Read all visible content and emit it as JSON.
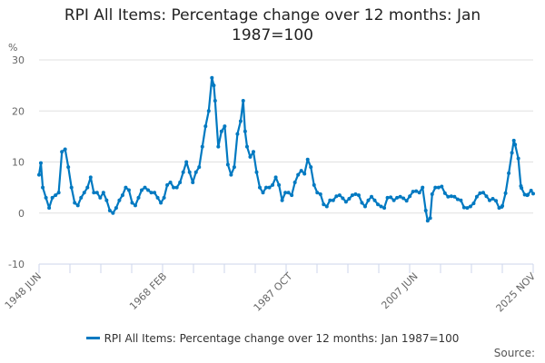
{
  "chart_data": {
    "type": "line",
    "title": "RPI All Items: Percentage change over 12 months: Jan 1987=100",
    "ylabel": "%",
    "xlabel": "",
    "ylim": [
      -10,
      30
    ],
    "yticks": [
      30,
      20,
      10,
      0,
      -10
    ],
    "xlim": [
      1948.42,
      2025.83
    ],
    "xtick_labels": [
      {
        "label": "1948 JUN",
        "x": 1948.42
      },
      {
        "label": "1968 FEB",
        "x": 1968.08
      },
      {
        "label": "1987 OCT",
        "x": 1987.75
      },
      {
        "label": "2007 JUN",
        "x": 2007.42
      },
      {
        "label": "2025 NOV",
        "x": 2025.83
      }
    ],
    "grid": true,
    "legend_position": "bottom",
    "series": [
      {
        "name": "RPI All Items: Percentage change over 12 months: Jan 1987=100",
        "color": "#0079c1",
        "x": [
          1948.42,
          1948.7,
          1949,
          1949.5,
          1950,
          1950.5,
          1951,
          1951.5,
          1952,
          1952.5,
          1953,
          1953.5,
          1954,
          1954.5,
          1955,
          1955.5,
          1956,
          1956.5,
          1957,
          1957.5,
          1958,
          1958.5,
          1959,
          1959.5,
          1960,
          1960.5,
          1961,
          1961.5,
          1962,
          1962.5,
          1963,
          1963.5,
          1964,
          1964.5,
          1965,
          1965.5,
          1966,
          1966.5,
          1967,
          1967.5,
          1968,
          1968.5,
          1969,
          1969.5,
          1970,
          1970.5,
          1971,
          1971.5,
          1972,
          1972.5,
          1973,
          1973.5,
          1974,
          1974.5,
          1975,
          1975.5,
          1975.8,
          1976,
          1976.5,
          1977,
          1977.5,
          1978,
          1978.5,
          1979,
          1979.5,
          1980,
          1980.4,
          1980.7,
          1981,
          1981.5,
          1982,
          1982.5,
          1983,
          1983.5,
          1984,
          1984.5,
          1985,
          1985.5,
          1986,
          1986.5,
          1987,
          1987.5,
          1988,
          1988.5,
          1989,
          1989.5,
          1990,
          1990.5,
          1991,
          1991.5,
          1992,
          1992.5,
          1993,
          1993.5,
          1994,
          1994.5,
          1995,
          1995.5,
          1996,
          1996.5,
          1997,
          1997.5,
          1998,
          1998.5,
          1999,
          1999.5,
          2000,
          2000.5,
          2001,
          2001.5,
          2002,
          2002.5,
          2003,
          2003.5,
          2004,
          2004.5,
          2005,
          2005.5,
          2006,
          2006.5,
          2007,
          2007.5,
          2008,
          2008.5,
          2009,
          2009.3,
          2009.7,
          2010,
          2010.5,
          2011,
          2011.5,
          2012,
          2012.5,
          2013,
          2013.5,
          2014,
          2014.5,
          2015,
          2015.5,
          2016,
          2016.5,
          2017,
          2017.5,
          2018,
          2018.5,
          2019,
          2019.5,
          2020,
          2020.5,
          2020.9,
          2021,
          2021.5,
          2022,
          2022.5,
          2022.8,
          2023,
          2023.5,
          2023.9,
          2024,
          2024.5,
          2024.9,
          2025,
          2025.5,
          2025.83
        ],
        "values": [
          7.5,
          9.8,
          5,
          3,
          1,
          3,
          3.5,
          4,
          12,
          12.5,
          9,
          5,
          2,
          1.5,
          3,
          4,
          5,
          7,
          4,
          4,
          3,
          4,
          2.5,
          0.5,
          0,
          1,
          2.5,
          3.5,
          5,
          4.5,
          2,
          1.5,
          3,
          4.5,
          5,
          4.5,
          4,
          4,
          3,
          2,
          3,
          5.5,
          6,
          5,
          5,
          6,
          8,
          10,
          8,
          6,
          8,
          9,
          13,
          17,
          20,
          26.5,
          25,
          22,
          13,
          16,
          17,
          9.5,
          7.5,
          9,
          15.5,
          18,
          22,
          16,
          13,
          11,
          12,
          8,
          5,
          4,
          5,
          5,
          5.5,
          7,
          5.5,
          2.5,
          4,
          4,
          3.5,
          6,
          7.5,
          8.3,
          7.7,
          10.5,
          9,
          5.5,
          4,
          3.7,
          1.7,
          1.3,
          2.5,
          2.5,
          3.3,
          3.5,
          2.9,
          2.2,
          2.8,
          3.5,
          3.7,
          3.5,
          2,
          1.3,
          2.5,
          3.2,
          2.5,
          1.7,
          1.3,
          1,
          3,
          3.1,
          2.5,
          3,
          3.2,
          2.9,
          2.4,
          3.3,
          4.2,
          4.3,
          4,
          5,
          0.5,
          -1.5,
          -1,
          3.7,
          5,
          5,
          5.2,
          3.9,
          3.2,
          3.3,
          3.2,
          2.7,
          2.5,
          1.1,
          1,
          1.3,
          1.9,
          3.2,
          3.9,
          4,
          3.3,
          2.5,
          2.8,
          2.4,
          1,
          1.2,
          1.4,
          3.9,
          7.8,
          11.8,
          14.2,
          13.4,
          10.7,
          5.3,
          4.9,
          3.6,
          3.5,
          3.6,
          4.4,
          3.8
        ]
      }
    ],
    "source_label": "Source:"
  }
}
